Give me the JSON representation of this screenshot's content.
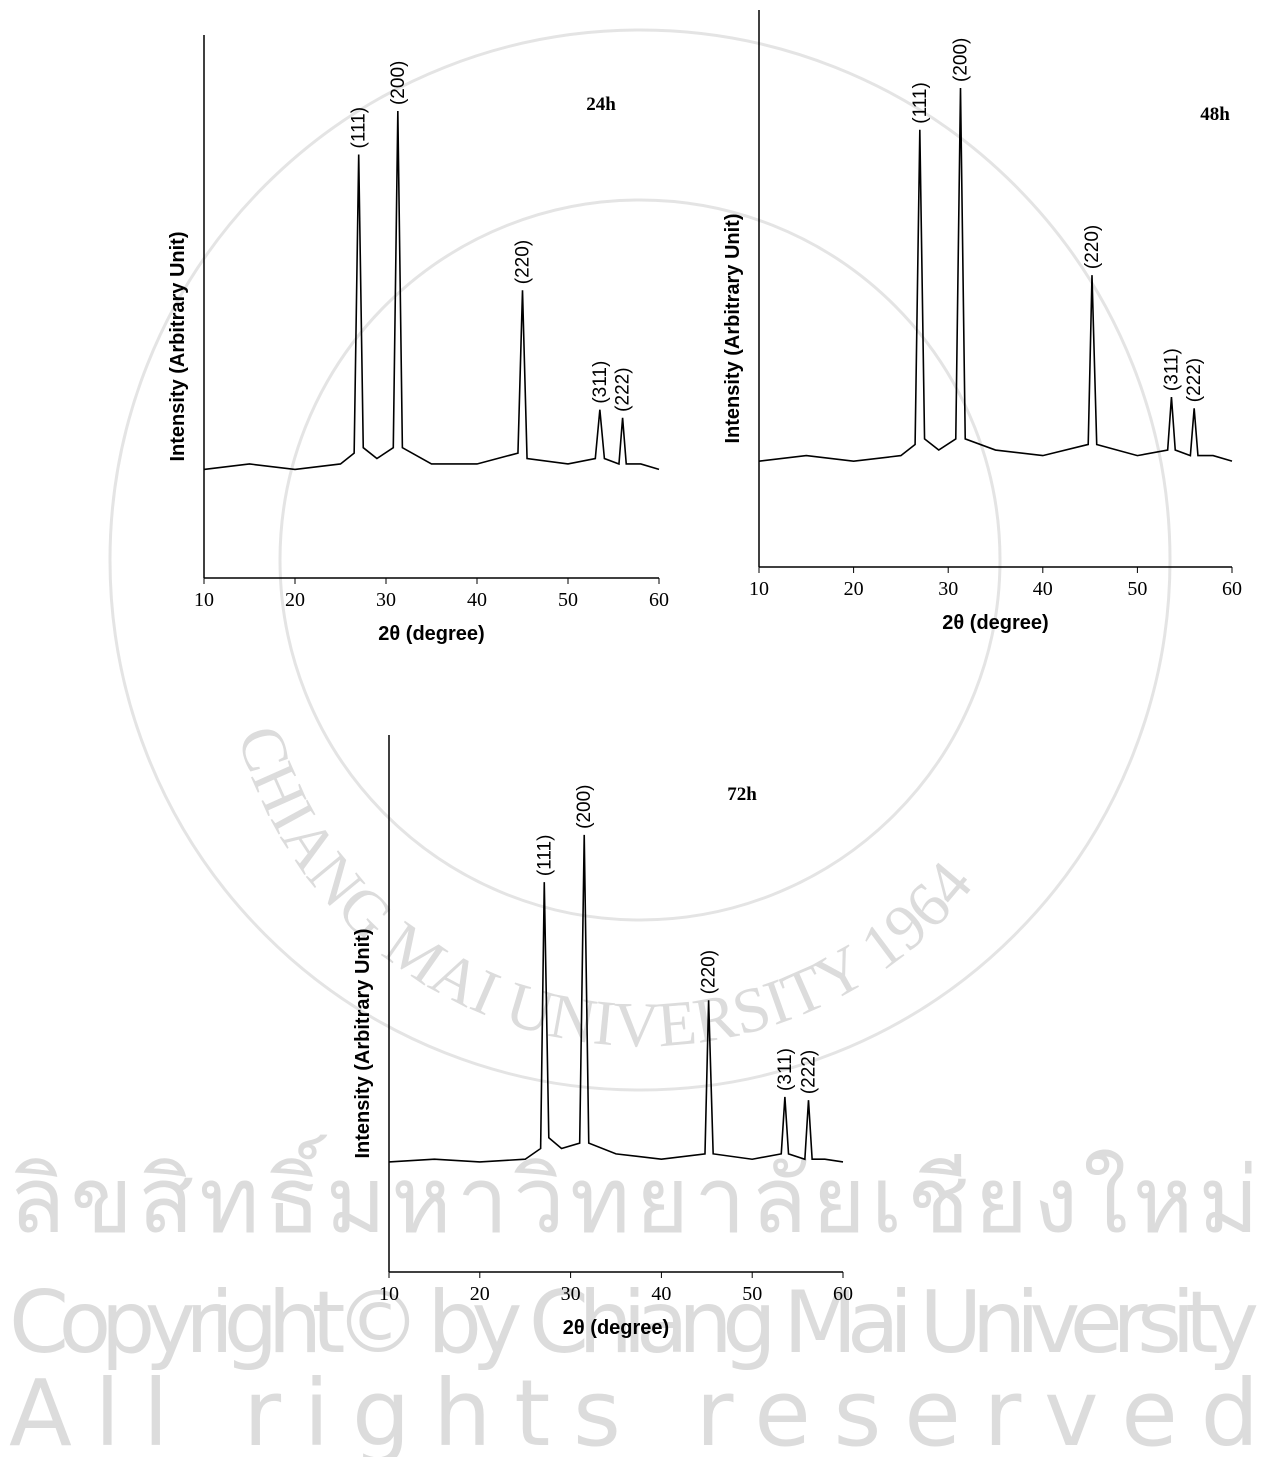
{
  "chart_data": [
    {
      "type": "line",
      "label": "24h",
      "xlabel": "2θ (degree)",
      "ylabel": "Intensity (Arbitrary Unit)",
      "xlim": [
        10,
        60
      ],
      "xticks": [
        10,
        20,
        30,
        40,
        50,
        60
      ],
      "ylim": [
        0,
        100
      ],
      "series": [
        {
          "color": "#000000",
          "x": [
            10,
            15,
            20,
            25,
            26.5,
            27,
            27.5,
            29,
            30.8,
            31.3,
            31.8,
            35,
            40,
            44.5,
            45,
            45.5,
            50,
            53,
            53.5,
            54,
            55.6,
            56,
            56.4,
            58,
            60
          ],
          "values": [
            20,
            21,
            20,
            21,
            23,
            78,
            24,
            22,
            24,
            86,
            24,
            21,
            21,
            23,
            53,
            22,
            21,
            22,
            31,
            22,
            21,
            29.5,
            21,
            21,
            20
          ]
        }
      ],
      "annotations": [
        {
          "text": "(111)",
          "x": 27
        },
        {
          "text": "(200)",
          "x": 31.3
        },
        {
          "text": "(220)",
          "x": 45
        },
        {
          "text": "(311)",
          "x": 53.5
        },
        {
          "text": "(222)",
          "x": 56
        }
      ]
    },
    {
      "type": "line",
      "label": "48h",
      "xlabel": "2θ (degree)",
      "ylabel": "Intensity (Arbitrary Unit)",
      "xlim": [
        10,
        60
      ],
      "xticks": [
        10,
        20,
        30,
        40,
        50,
        60
      ],
      "ylim": [
        0,
        100
      ],
      "series": [
        {
          "color": "#000000",
          "x": [
            10,
            15,
            20,
            25,
            26.5,
            27,
            27.5,
            29,
            30.8,
            31.3,
            31.8,
            35,
            40,
            44.8,
            45.2,
            45.7,
            50,
            53.2,
            53.6,
            54,
            55.6,
            56,
            56.4,
            58,
            60
          ],
          "values": [
            19,
            20,
            19,
            20,
            22,
            78.5,
            23,
            21,
            23,
            86,
            23,
            21,
            20,
            22,
            52.4,
            22,
            20,
            21,
            30.5,
            21,
            20,
            28.5,
            20,
            20,
            19
          ]
        }
      ],
      "annotations": [
        {
          "text": "(111)",
          "x": 27
        },
        {
          "text": "(200)",
          "x": 31.3
        },
        {
          "text": "(220)",
          "x": 45.2
        },
        {
          "text": "(311)",
          "x": 53.6
        },
        {
          "text": "(222)",
          "x": 56
        }
      ]
    },
    {
      "type": "line",
      "label": "72h",
      "xlabel": "2θ (degree)",
      "ylabel": "Intensity (Arbitrary Unit)",
      "xlim": [
        10,
        60
      ],
      "xticks": [
        10,
        20,
        30,
        40,
        50,
        60
      ],
      "ylim": [
        0,
        100
      ],
      "series": [
        {
          "color": "#000000",
          "x": [
            10,
            15,
            20,
            25,
            26.7,
            27.1,
            27.6,
            29,
            31,
            31.5,
            32,
            35,
            40,
            44.8,
            45.2,
            45.7,
            50,
            53.2,
            53.6,
            54,
            55.8,
            56.2,
            56.6,
            58,
            60
          ],
          "values": [
            20.5,
            21,
            20.5,
            21,
            23,
            72.6,
            25,
            23,
            24,
            81.4,
            24,
            22,
            21,
            22,
            50.6,
            22,
            21,
            22,
            32.6,
            22,
            21,
            32,
            21,
            21,
            20.5
          ]
        }
      ],
      "annotations": [
        {
          "text": "(111)",
          "x": 27.1
        },
        {
          "text": "(200)",
          "x": 31.5
        },
        {
          "text": "(220)",
          "x": 45.2
        },
        {
          "text": "(311)",
          "x": 53.6
        },
        {
          "text": "(222)",
          "x": 56.2
        }
      ]
    }
  ],
  "watermark": {
    "thai": "ลิขสิทธิ์มหาวิทยาลัยเชียงใหม่",
    "copyright": "Copyright© by Chiang Mai University",
    "rights": "All rights reserved",
    "seal": "CHIANG MAI UNIVERSITY 1964"
  }
}
